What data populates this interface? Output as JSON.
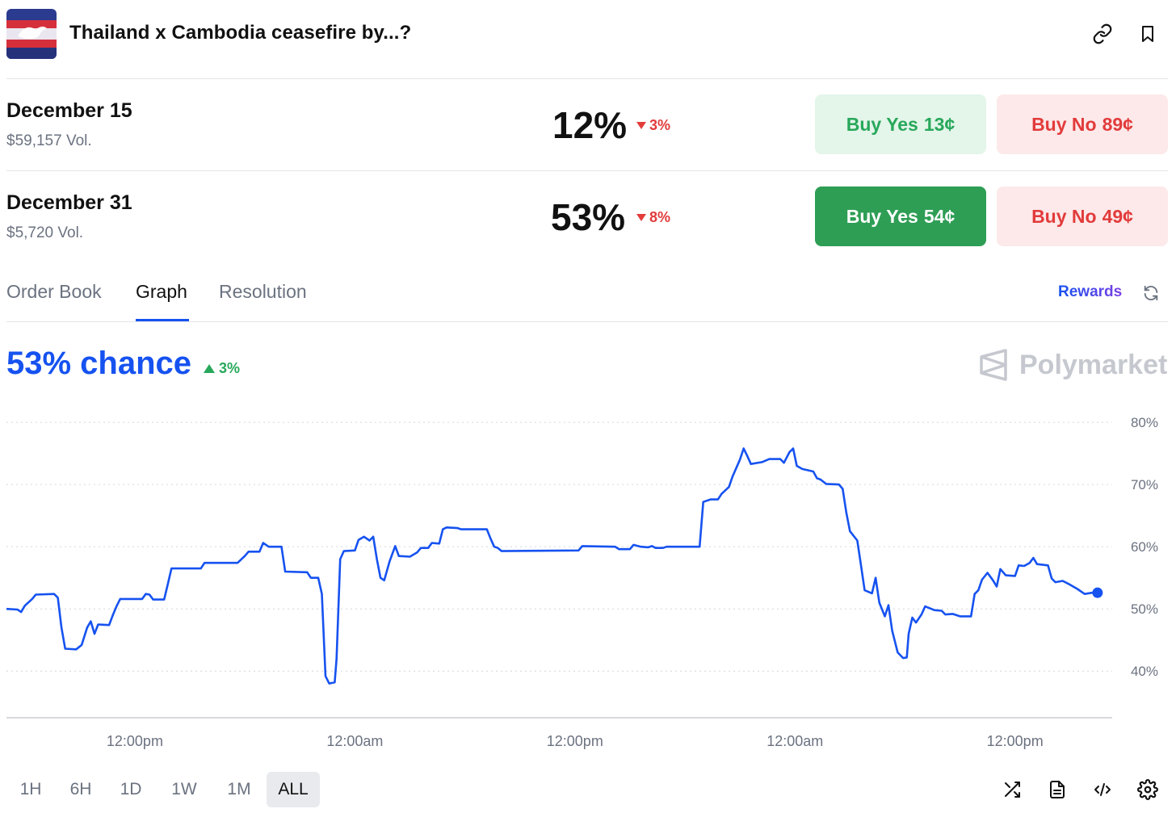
{
  "header": {
    "title": "Thailand x Cambodia ceasefire by...?",
    "thumbnail": "dove-flag-image",
    "icons": [
      "link-icon",
      "bookmark-icon"
    ]
  },
  "markets": [
    {
      "name": "December 15",
      "volume": "$59,157 Vol.",
      "percent": "12%",
      "change": "3%",
      "change_direction": "down",
      "buy_yes_label": "Buy Yes",
      "buy_yes_price": "13¢",
      "buy_no_label": "Buy No",
      "buy_no_price": "89¢"
    },
    {
      "name": "December 31",
      "volume": "$5,720 Vol.",
      "percent": "53%",
      "change": "8%",
      "change_direction": "down",
      "buy_yes_label": "Buy Yes",
      "buy_yes_price": "54¢",
      "buy_no_label": "Buy No",
      "buy_no_price": "49¢"
    }
  ],
  "tabs": [
    {
      "label": "Order Book",
      "active": false
    },
    {
      "label": "Graph",
      "active": true
    },
    {
      "label": "Resolution",
      "active": false
    }
  ],
  "rewards_label": "Rewards",
  "chance": {
    "value": "53% chance",
    "change": "3%",
    "change_direction": "up"
  },
  "brand": "Polymarket",
  "time_ranges": [
    {
      "label": "1H",
      "active": false
    },
    {
      "label": "6H",
      "active": false
    },
    {
      "label": "1D",
      "active": false
    },
    {
      "label": "1W",
      "active": false
    },
    {
      "label": "1M",
      "active": false
    },
    {
      "label": "ALL",
      "active": true
    }
  ],
  "footer_icons": [
    "shuffle-icon",
    "document-icon",
    "code-icon",
    "settings-icon"
  ],
  "colors": {
    "accent": "#1652f0",
    "yes": "#27a85b",
    "no": "#e23b3b"
  },
  "chart_data": {
    "type": "line",
    "y_ticks": [
      "80%",
      "70%",
      "60%",
      "50%",
      "40%"
    ],
    "y_tick_values": [
      80,
      70,
      60,
      50,
      40
    ],
    "ylim": [
      32.5,
      83
    ],
    "x_tick_labels": [
      "12:00pm",
      "12:00am",
      "12:00pm",
      "12:00am",
      "12:00pm"
    ],
    "x_tick_positions_hours": [
      7,
      19,
      31,
      43,
      55
    ],
    "xlim_hours": [
      0,
      60.3
    ],
    "grid": true,
    "series": [
      {
        "values": [
          [
            0.0,
            50
          ],
          [
            0.6,
            49.9
          ],
          [
            0.8,
            49.5
          ],
          [
            1.0,
            50.5
          ],
          [
            1.4,
            51.6
          ],
          [
            1.6,
            52.3
          ],
          [
            2.6,
            52.4
          ],
          [
            2.8,
            51.8
          ],
          [
            3.0,
            47.0
          ],
          [
            3.2,
            43.6
          ],
          [
            3.8,
            43.5
          ],
          [
            4.1,
            44.2
          ],
          [
            4.4,
            47.0
          ],
          [
            4.6,
            48.0
          ],
          [
            4.8,
            46.0
          ],
          [
            5.0,
            47.5
          ],
          [
            5.6,
            47.4
          ],
          [
            5.8,
            49.0
          ],
          [
            6.0,
            50.4
          ],
          [
            6.2,
            51.6
          ],
          [
            7.4,
            51.6
          ],
          [
            7.6,
            52.4
          ],
          [
            7.8,
            52.3
          ],
          [
            8.0,
            51.5
          ],
          [
            8.6,
            51.5
          ],
          [
            8.8,
            54.0
          ],
          [
            9.0,
            56.5
          ],
          [
            10.6,
            56.5
          ],
          [
            10.8,
            57.4
          ],
          [
            12.6,
            57.4
          ],
          [
            13.0,
            58.5
          ],
          [
            13.2,
            59.2
          ],
          [
            13.8,
            59.2
          ],
          [
            14.0,
            60.6
          ],
          [
            14.3,
            60.0
          ],
          [
            15.0,
            60.0
          ],
          [
            15.2,
            56.0
          ],
          [
            16.4,
            55.9
          ],
          [
            16.6,
            55.0
          ],
          [
            17.0,
            55.0
          ],
          [
            17.2,
            52.4
          ],
          [
            17.4,
            39.2
          ],
          [
            17.6,
            38.0
          ],
          [
            17.9,
            38.2
          ],
          [
            18.0,
            42.0
          ],
          [
            18.2,
            58.0
          ],
          [
            18.4,
            59.3
          ],
          [
            19.0,
            59.4
          ],
          [
            19.2,
            61.1
          ],
          [
            19.5,
            61.6
          ],
          [
            19.8,
            61.0
          ],
          [
            20.0,
            61.6
          ],
          [
            20.2,
            58.0
          ],
          [
            20.4,
            55.0
          ],
          [
            20.6,
            54.6
          ],
          [
            20.9,
            57.7
          ],
          [
            21.2,
            60.1
          ],
          [
            21.4,
            58.5
          ],
          [
            22.0,
            58.4
          ],
          [
            22.4,
            59.1
          ],
          [
            22.6,
            59.8
          ],
          [
            23.0,
            59.8
          ],
          [
            23.2,
            60.6
          ],
          [
            23.6,
            60.5
          ],
          [
            23.8,
            62.8
          ],
          [
            24.0,
            63.1
          ],
          [
            24.6,
            63.0
          ],
          [
            24.8,
            62.8
          ],
          [
            26.2,
            62.8
          ],
          [
            26.4,
            61.3
          ],
          [
            26.6,
            60.0
          ],
          [
            26.8,
            59.8
          ],
          [
            27.0,
            59.3
          ],
          [
            31.2,
            59.4
          ],
          [
            31.4,
            60.1
          ],
          [
            33.2,
            60.0
          ],
          [
            33.4,
            59.6
          ],
          [
            34.0,
            59.6
          ],
          [
            34.2,
            60.3
          ],
          [
            34.6,
            60.0
          ],
          [
            35.0,
            59.9
          ],
          [
            35.2,
            60.1
          ],
          [
            35.4,
            59.8
          ],
          [
            35.8,
            59.8
          ],
          [
            36.0,
            60.0
          ],
          [
            37.8,
            60.0
          ],
          [
            38.0,
            67.2
          ],
          [
            38.4,
            67.6
          ],
          [
            38.8,
            67.6
          ],
          [
            39.0,
            68.5
          ],
          [
            39.4,
            69.6
          ],
          [
            39.6,
            71.3
          ],
          [
            40.0,
            74.0
          ],
          [
            40.2,
            75.8
          ],
          [
            40.4,
            74.6
          ],
          [
            40.6,
            73.3
          ],
          [
            41.2,
            73.6
          ],
          [
            41.6,
            74.1
          ],
          [
            42.2,
            74.1
          ],
          [
            42.4,
            73.5
          ],
          [
            42.7,
            75.2
          ],
          [
            42.9,
            75.8
          ],
          [
            43.1,
            73.0
          ],
          [
            43.4,
            72.5
          ],
          [
            44.0,
            72.1
          ],
          [
            44.2,
            71.0
          ],
          [
            44.4,
            70.8
          ],
          [
            44.7,
            70.1
          ],
          [
            45.4,
            70.0
          ],
          [
            45.6,
            69.3
          ],
          [
            45.8,
            65.5
          ],
          [
            46.0,
            62.5
          ],
          [
            46.4,
            61.0
          ],
          [
            46.6,
            57.0
          ],
          [
            46.8,
            53.0
          ],
          [
            47.2,
            52.5
          ],
          [
            47.4,
            55.0
          ],
          [
            47.6,
            51.0
          ],
          [
            47.9,
            48.8
          ],
          [
            48.1,
            50.6
          ],
          [
            48.3,
            46.5
          ],
          [
            48.6,
            43.0
          ],
          [
            48.9,
            42.1
          ],
          [
            49.1,
            42.2
          ],
          [
            49.2,
            46.0
          ],
          [
            49.4,
            48.6
          ],
          [
            49.6,
            47.8
          ],
          [
            49.9,
            49.1
          ],
          [
            50.1,
            50.4
          ],
          [
            50.6,
            49.8
          ],
          [
            51.0,
            49.7
          ],
          [
            51.2,
            49.1
          ],
          [
            51.6,
            49.2
          ],
          [
            52.0,
            48.8
          ],
          [
            52.6,
            48.8
          ],
          [
            52.8,
            52.4
          ],
          [
            53.0,
            53.0
          ],
          [
            53.2,
            54.7
          ],
          [
            53.5,
            55.8
          ],
          [
            53.8,
            54.6
          ],
          [
            54.0,
            53.6
          ],
          [
            54.2,
            56.4
          ],
          [
            54.5,
            55.4
          ],
          [
            55.0,
            55.3
          ],
          [
            55.2,
            57.0
          ],
          [
            55.5,
            56.9
          ],
          [
            55.8,
            57.4
          ],
          [
            56.0,
            58.2
          ],
          [
            56.2,
            57.2
          ],
          [
            56.8,
            57.0
          ],
          [
            57.0,
            54.9
          ],
          [
            57.2,
            54.3
          ],
          [
            57.6,
            54.5
          ],
          [
            58.0,
            53.9
          ],
          [
            58.4,
            53.2
          ],
          [
            58.8,
            52.4
          ],
          [
            59.2,
            52.6
          ],
          [
            59.5,
            52.6
          ]
        ]
      }
    ],
    "end_value": 52.6
  }
}
